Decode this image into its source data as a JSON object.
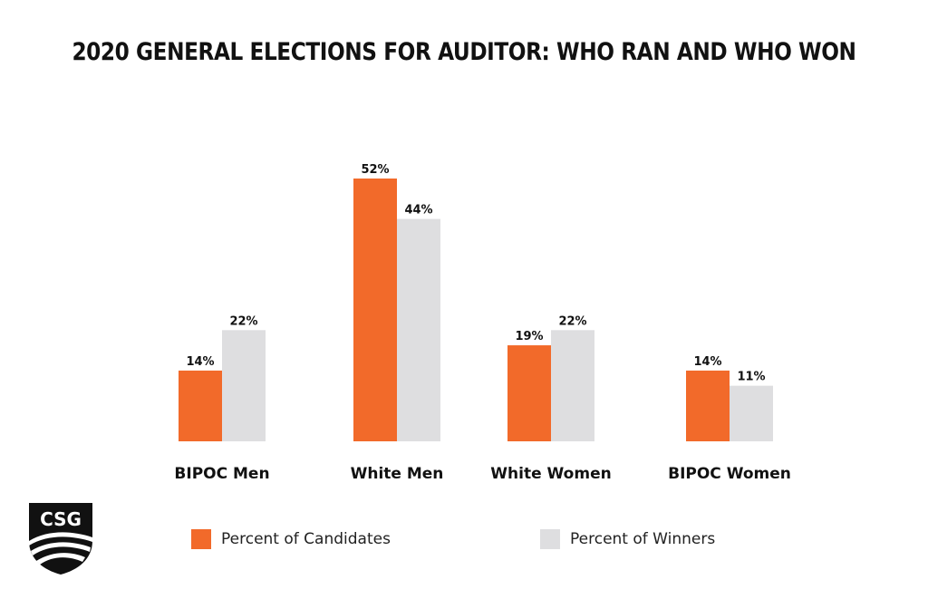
{
  "chart_data": {
    "type": "bar",
    "title": "2020 GENERAL ELECTIONS FOR AUDITOR: WHO RAN AND WHO WON",
    "categories": [
      "BIPOC Men",
      "White Men",
      "White Women",
      "BIPOC Women"
    ],
    "series": [
      {
        "name": "Percent of Candidates",
        "color": "#f26a2a",
        "values": [
          14,
          52,
          19,
          14
        ],
        "labels": [
          "14%",
          "52%",
          "19%",
          "14%"
        ]
      },
      {
        "name": "Percent of Winners",
        "color": "#dedee0",
        "values": [
          22,
          44,
          22,
          11
        ],
        "labels": [
          "22%",
          "44%",
          "22%",
          "11%"
        ]
      }
    ],
    "ylim": [
      0,
      52
    ],
    "xlabel": "",
    "ylabel": "",
    "grid": false,
    "legend_position": "bottom"
  },
  "logo": {
    "text": "CSG",
    "color": "#111111"
  }
}
